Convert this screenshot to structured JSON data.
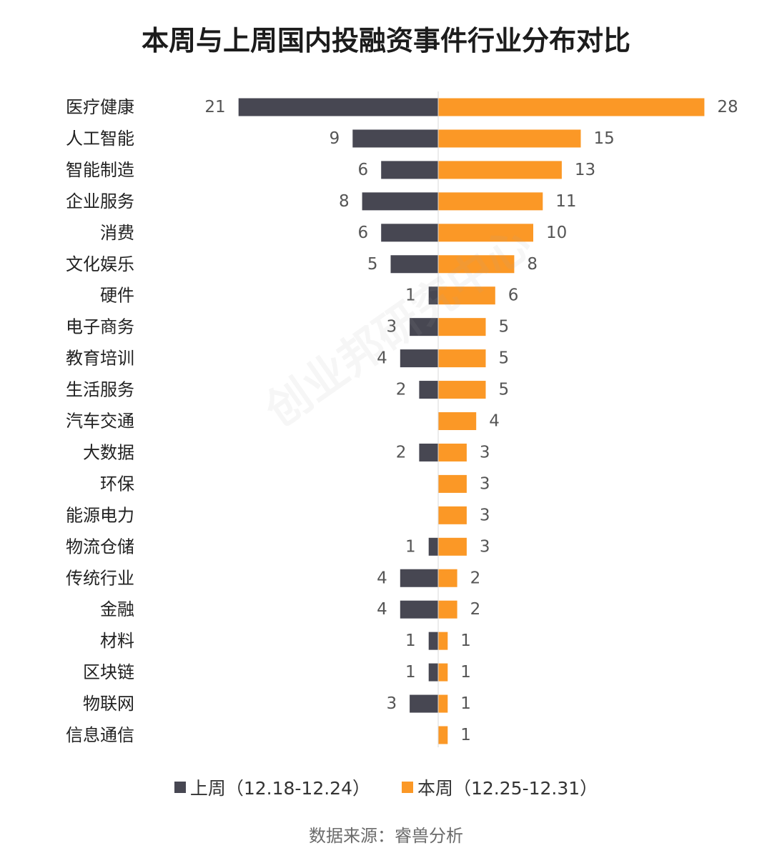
{
  "chart_data": {
    "type": "bar",
    "orientation": "horizontal-diverging",
    "title": "本周与上周国内投融资事件行业分布对比",
    "categories": [
      "医疗健康",
      "人工智能",
      "智能制造",
      "企业服务",
      "消费",
      "文化娱乐",
      "硬件",
      "电子商务",
      "教育培训",
      "生活服务",
      "汽车交通",
      "大数据",
      "环保",
      "能源电力",
      "物流仓储",
      "传统行业",
      "金融",
      "材料",
      "区块链",
      "物联网",
      "信息通信"
    ],
    "series": [
      {
        "name": "上周（12.18-12.24）",
        "color": "#474752",
        "side": "left",
        "values": [
          21,
          9,
          6,
          8,
          6,
          5,
          1,
          3,
          4,
          2,
          null,
          2,
          null,
          null,
          1,
          4,
          4,
          1,
          1,
          3,
          null
        ]
      },
      {
        "name": "本周（12.25-12.31）",
        "color": "#FB9826",
        "side": "right",
        "values": [
          28,
          15,
          13,
          11,
          10,
          8,
          6,
          5,
          5,
          5,
          4,
          3,
          3,
          3,
          3,
          2,
          2,
          1,
          1,
          1,
          1
        ]
      }
    ],
    "legend_position": "bottom"
  },
  "source": "数据来源：睿兽分析",
  "watermark": "创业邦研究中心"
}
